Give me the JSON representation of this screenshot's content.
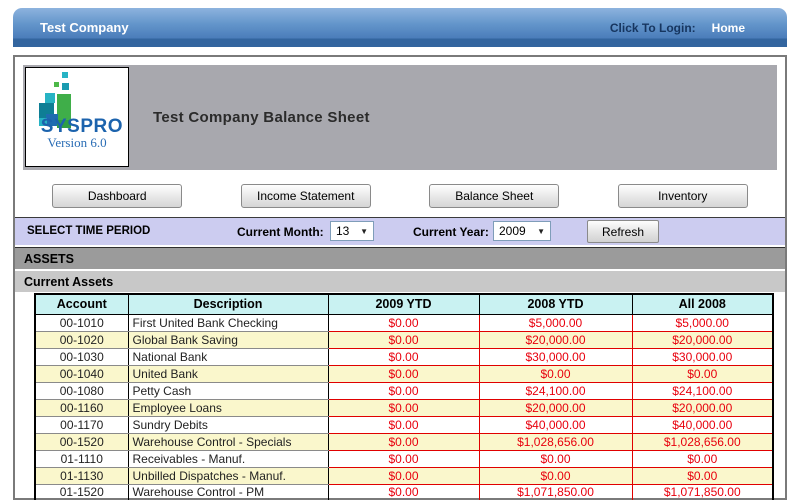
{
  "topbar": {
    "company_name": "Test Company",
    "login_prompt": "Click To Login:",
    "home_link": "Home"
  },
  "logo": {
    "brand": "SYSPRO",
    "version": "Version 6.0"
  },
  "page": {
    "title": "Test Company Balance Sheet"
  },
  "nav": {
    "buttons": [
      "Dashboard",
      "Income Statement",
      "Balance Sheet",
      "Inventory"
    ]
  },
  "filters": {
    "section_label": "SELECT TIME PERIOD",
    "month_label": "Current Month:",
    "month_value": "13",
    "year_label": "Current Year:",
    "year_value": "2009",
    "refresh_label": "Refresh"
  },
  "sections": {
    "group_header": "ASSETS",
    "subgroup_header": "Current Assets"
  },
  "table": {
    "columns": [
      "Account",
      "Description",
      "2009 YTD",
      "2008 YTD",
      "All 2008"
    ],
    "rows": [
      [
        "00-1010",
        "First United Bank Checking",
        "$0.00",
        "$5,000.00",
        "$5,000.00"
      ],
      [
        "00-1020",
        "Global Bank Saving",
        "$0.00",
        "$20,000.00",
        "$20,000.00"
      ],
      [
        "00-1030",
        "National Bank",
        "$0.00",
        "$30,000.00",
        "$30,000.00"
      ],
      [
        "00-1040",
        "United Bank",
        "$0.00",
        "$0.00",
        "$0.00"
      ],
      [
        "00-1080",
        "Petty Cash",
        "$0.00",
        "$24,100.00",
        "$24,100.00"
      ],
      [
        "00-1160",
        "Employee Loans",
        "$0.00",
        "$20,000.00",
        "$20,000.00"
      ],
      [
        "00-1170",
        "Sundry Debits",
        "$0.00",
        "$40,000.00",
        "$40,000.00"
      ],
      [
        "00-1520",
        "Warehouse Control - Specials",
        "$0.00",
        "$1,028,656.00",
        "$1,028,656.00"
      ],
      [
        "01-1110",
        "Receivables - Manuf.",
        "$0.00",
        "$0.00",
        "$0.00"
      ],
      [
        "01-1130",
        "Unbilled Dispatches - Manuf.",
        "$0.00",
        "$0.00",
        "$0.00"
      ],
      [
        "01-1520",
        "Warehouse Control - PM",
        "$0.00",
        "$1,071,850.00",
        "$1,071,850.00"
      ]
    ]
  },
  "colors": {
    "topbar_blue": "#4a7cba",
    "topbar_dark_strip": "#33659f",
    "login_prompt_navy": "#16355f",
    "brand_band_gray": "#a8a8ae",
    "filter_lavender": "#ccccf0",
    "assets_band_gray": "#9b9b9b",
    "subgroup_band_gray": "#c8c8c8",
    "table_header_cyan": "#c9f2f2",
    "row_alt_yellow": "#faf7cc",
    "amount_red": "#e8000d"
  }
}
